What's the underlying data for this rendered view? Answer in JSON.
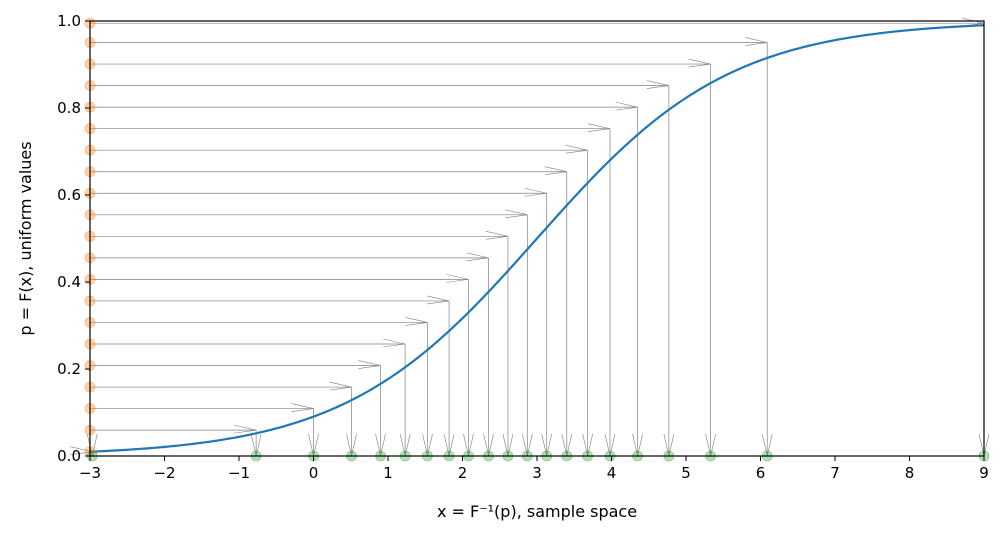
{
  "chart_data": {
    "type": "line",
    "title": "",
    "xlabel": "x = F⁻¹(p), sample space",
    "ylabel": "p = F(x), uniform values",
    "xlim": [
      -3,
      9
    ],
    "ylim": [
      0,
      1
    ],
    "xticks": [
      "−3",
      "−2",
      "−1",
      "0",
      "1",
      "2",
      "3",
      "4",
      "5",
      "6",
      "7",
      "8",
      "9"
    ],
    "yticks": [
      "0.0",
      "0.2",
      "0.4",
      "0.6",
      "0.8",
      "1.0"
    ],
    "grid": false,
    "legend": "none",
    "distribution": {
      "mean": 3,
      "scale": 1.3
    },
    "uniform_values": [
      0.01,
      0.0595,
      0.109,
      0.1585,
      0.208,
      0.2575,
      0.307,
      0.3565,
      0.406,
      0.4555,
      0.505,
      0.5545,
      0.604,
      0.6535,
      0.703,
      0.7525,
      0.802,
      0.8515,
      0.901,
      0.9505,
      0.995
    ],
    "sample_values": [
      -2.97,
      -0.77,
      0.0,
      0.51,
      0.9,
      1.23,
      1.53,
      1.82,
      2.08,
      2.35,
      2.61,
      2.87,
      3.13,
      3.4,
      3.68,
      3.98,
      4.35,
      4.77,
      5.33,
      6.09,
      9.12
    ],
    "colors": {
      "curve": "#1f77b4",
      "uniform_markers": "#ff7f0e",
      "sample_markers": "#2ca02c",
      "arrows": "#808080"
    }
  }
}
